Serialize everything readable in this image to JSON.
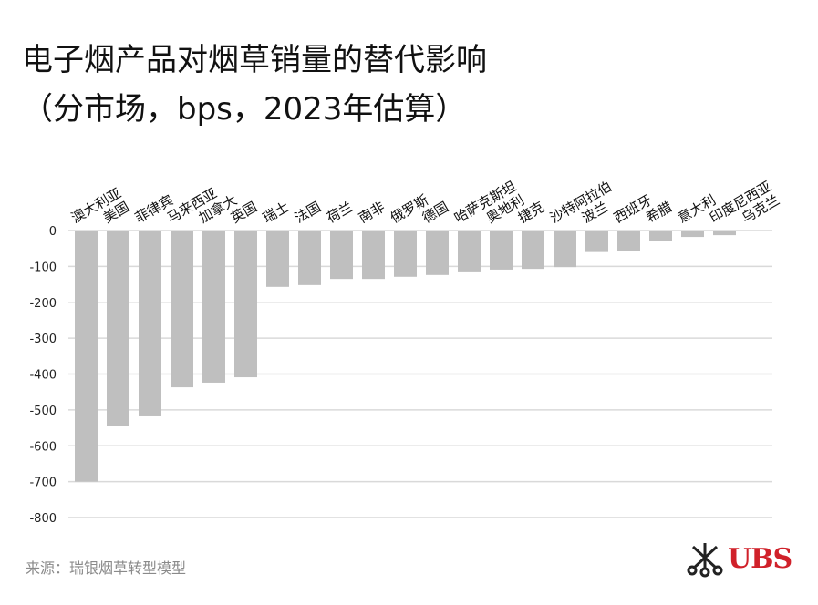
{
  "title_line1": "电子烟产品对烟草销量的替代影响",
  "title_line2": "（分市场，bps，2023年估算）",
  "source": "来源：瑞银烟草转型模型",
  "logo": "UBS",
  "colors": {
    "bar": "#bfbfbf",
    "grid": "#d9d9d9",
    "logo": "#d0212a"
  },
  "chart_data": {
    "type": "bar",
    "title": "电子烟产品对烟草销量的替代影响（分市场，bps，2023年估算）",
    "categories": [
      "澳大利亚",
      "美国",
      "菲律宾",
      "马来西亚",
      "加拿大",
      "英国",
      "瑞士",
      "法国",
      "荷兰",
      "南非",
      "俄罗斯",
      "德国",
      "哈萨克斯坦",
      "奥地利",
      "捷克",
      "沙特阿拉伯",
      "波兰",
      "西班牙",
      "希腊",
      "意大利",
      "印度尼西亚",
      "乌克兰"
    ],
    "values": [
      -700,
      -546,
      -518,
      -437,
      -424,
      -409,
      -157,
      -152,
      -135,
      -135,
      -129,
      -124,
      -114,
      -109,
      -107,
      -102,
      -60,
      -58,
      -30,
      -18,
      -13,
      0
    ],
    "ylim": [
      -800,
      0
    ],
    "yticks": [
      0,
      -100,
      -200,
      -300,
      -400,
      -500,
      -600,
      -700,
      -800
    ],
    "grid": true,
    "xlabel": "",
    "ylabel": ""
  }
}
